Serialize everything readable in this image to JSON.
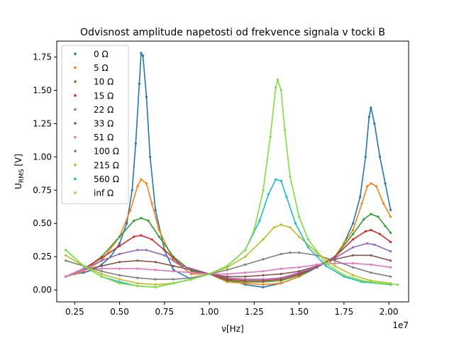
{
  "chart_data": {
    "type": "scatter",
    "title": "Odvisnost amplitude napetosti od frekvence signala v tocki B",
    "xlabel": "ν[Hz]",
    "ylabel_main": "U",
    "ylabel_sub": "RMS",
    "ylabel_unit": " [V]",
    "x_offset_label": "1e7",
    "xlim": [
      0.15,
      2.11
    ],
    "ylim": [
      -0.09,
      1.87
    ],
    "xticks": [
      {
        "v": 0.25,
        "label": "0.25"
      },
      {
        "v": 0.5,
        "label": "0.50"
      },
      {
        "v": 0.75,
        "label": "0.75"
      },
      {
        "v": 1.0,
        "label": "1.00"
      },
      {
        "v": 1.25,
        "label": "1.25"
      },
      {
        "v": 1.5,
        "label": "1.50"
      },
      {
        "v": 1.75,
        "label": "1.75"
      },
      {
        "v": 2.0,
        "label": "2.00"
      }
    ],
    "yticks": [
      {
        "v": 0.0,
        "label": "0.00"
      },
      {
        "v": 0.25,
        "label": "0.25"
      },
      {
        "v": 0.5,
        "label": "0.50"
      },
      {
        "v": 0.75,
        "label": "0.75"
      },
      {
        "v": 1.0,
        "label": "1.00"
      },
      {
        "v": 1.25,
        "label": "1.25"
      },
      {
        "v": 1.5,
        "label": "1.50"
      },
      {
        "v": 1.75,
        "label": "1.75"
      }
    ],
    "legend_position": "top-left",
    "series": [
      {
        "name": "0 Ω",
        "color": "#1f77b4",
        "points": [
          [
            0.2,
            0.1
          ],
          [
            0.25,
            0.12
          ],
          [
            0.3,
            0.13
          ],
          [
            0.35,
            0.15
          ],
          [
            0.4,
            0.19
          ],
          [
            0.45,
            0.25
          ],
          [
            0.5,
            0.35
          ],
          [
            0.54,
            0.5
          ],
          [
            0.57,
            0.75
          ],
          [
            0.59,
            1.1
          ],
          [
            0.61,
            1.55
          ],
          [
            0.62,
            1.78
          ],
          [
            0.63,
            1.76
          ],
          [
            0.65,
            1.45
          ],
          [
            0.67,
            1.0
          ],
          [
            0.7,
            0.6
          ],
          [
            0.75,
            0.3
          ],
          [
            0.8,
            0.15
          ],
          [
            0.9,
            0.08
          ],
          [
            1.0,
            0.12
          ],
          [
            1.1,
            0.08
          ],
          [
            1.2,
            0.04
          ],
          [
            1.3,
            0.02
          ],
          [
            1.4,
            0.05
          ],
          [
            1.5,
            0.1
          ],
          [
            1.6,
            0.17
          ],
          [
            1.7,
            0.25
          ],
          [
            1.75,
            0.35
          ],
          [
            1.8,
            0.5
          ],
          [
            1.84,
            0.7
          ],
          [
            1.87,
            1.0
          ],
          [
            1.89,
            1.3
          ],
          [
            1.9,
            1.37
          ],
          [
            1.92,
            1.25
          ],
          [
            1.95,
            1.0
          ],
          [
            1.98,
            0.8
          ],
          [
            2.01,
            0.6
          ]
        ]
      },
      {
        "name": "5 Ω",
        "color": "#ff7f0e",
        "points": [
          [
            0.2,
            0.1
          ],
          [
            0.3,
            0.14
          ],
          [
            0.4,
            0.22
          ],
          [
            0.5,
            0.4
          ],
          [
            0.56,
            0.6
          ],
          [
            0.6,
            0.78
          ],
          [
            0.62,
            0.83
          ],
          [
            0.65,
            0.8
          ],
          [
            0.68,
            0.65
          ],
          [
            0.72,
            0.45
          ],
          [
            0.8,
            0.22
          ],
          [
            0.9,
            0.12
          ],
          [
            1.0,
            0.12
          ],
          [
            1.1,
            0.06
          ],
          [
            1.2,
            0.05
          ],
          [
            1.3,
            0.04
          ],
          [
            1.4,
            0.05
          ],
          [
            1.5,
            0.1
          ],
          [
            1.6,
            0.18
          ],
          [
            1.7,
            0.25
          ],
          [
            1.8,
            0.45
          ],
          [
            1.85,
            0.65
          ],
          [
            1.88,
            0.78
          ],
          [
            1.9,
            0.8
          ],
          [
            1.93,
            0.78
          ],
          [
            1.97,
            0.65
          ],
          [
            2.01,
            0.55
          ]
        ]
      },
      {
        "name": "10 Ω",
        "color": "#2ca02c",
        "points": [
          [
            0.2,
            0.1
          ],
          [
            0.3,
            0.15
          ],
          [
            0.4,
            0.25
          ],
          [
            0.5,
            0.4
          ],
          [
            0.58,
            0.52
          ],
          [
            0.62,
            0.54
          ],
          [
            0.66,
            0.52
          ],
          [
            0.72,
            0.4
          ],
          [
            0.8,
            0.25
          ],
          [
            0.9,
            0.14
          ],
          [
            1.0,
            0.12
          ],
          [
            1.1,
            0.07
          ],
          [
            1.2,
            0.06
          ],
          [
            1.3,
            0.06
          ],
          [
            1.4,
            0.07
          ],
          [
            1.5,
            0.11
          ],
          [
            1.6,
            0.17
          ],
          [
            1.7,
            0.25
          ],
          [
            1.8,
            0.42
          ],
          [
            1.86,
            0.53
          ],
          [
            1.9,
            0.57
          ],
          [
            1.94,
            0.55
          ],
          [
            1.98,
            0.48
          ],
          [
            2.01,
            0.43
          ]
        ]
      },
      {
        "name": "15 Ω",
        "color": "#d62728",
        "points": [
          [
            0.2,
            0.1
          ],
          [
            0.3,
            0.16
          ],
          [
            0.4,
            0.24
          ],
          [
            0.5,
            0.33
          ],
          [
            0.58,
            0.4
          ],
          [
            0.62,
            0.41
          ],
          [
            0.68,
            0.38
          ],
          [
            0.75,
            0.3
          ],
          [
            0.85,
            0.18
          ],
          [
            1.0,
            0.12
          ],
          [
            1.1,
            0.08
          ],
          [
            1.2,
            0.07
          ],
          [
            1.3,
            0.07
          ],
          [
            1.4,
            0.08
          ],
          [
            1.5,
            0.12
          ],
          [
            1.6,
            0.17
          ],
          [
            1.7,
            0.25
          ],
          [
            1.8,
            0.38
          ],
          [
            1.87,
            0.44
          ],
          [
            1.9,
            0.45
          ],
          [
            1.95,
            0.42
          ],
          [
            2.01,
            0.36
          ]
        ]
      },
      {
        "name": "22 Ω",
        "color": "#9467bd",
        "points": [
          [
            0.2,
            0.1
          ],
          [
            0.3,
            0.16
          ],
          [
            0.4,
            0.22
          ],
          [
            0.5,
            0.27
          ],
          [
            0.6,
            0.3
          ],
          [
            0.65,
            0.3
          ],
          [
            0.75,
            0.26
          ],
          [
            0.85,
            0.18
          ],
          [
            1.0,
            0.12
          ],
          [
            1.1,
            0.09
          ],
          [
            1.2,
            0.08
          ],
          [
            1.3,
            0.08
          ],
          [
            1.4,
            0.09
          ],
          [
            1.5,
            0.13
          ],
          [
            1.6,
            0.17
          ],
          [
            1.7,
            0.24
          ],
          [
            1.8,
            0.32
          ],
          [
            1.88,
            0.35
          ],
          [
            1.92,
            0.34
          ],
          [
            2.01,
            0.29
          ]
        ]
      },
      {
        "name": "33 Ω",
        "color": "#8c564b",
        "points": [
          [
            0.2,
            0.1
          ],
          [
            0.3,
            0.15
          ],
          [
            0.4,
            0.18
          ],
          [
            0.5,
            0.21
          ],
          [
            0.6,
            0.22
          ],
          [
            0.7,
            0.21
          ],
          [
            0.8,
            0.18
          ],
          [
            0.9,
            0.15
          ],
          [
            1.0,
            0.12
          ],
          [
            1.1,
            0.1
          ],
          [
            1.2,
            0.1
          ],
          [
            1.3,
            0.11
          ],
          [
            1.4,
            0.12
          ],
          [
            1.5,
            0.14
          ],
          [
            1.6,
            0.18
          ],
          [
            1.7,
            0.23
          ],
          [
            1.8,
            0.26
          ],
          [
            1.9,
            0.26
          ],
          [
            2.01,
            0.22
          ]
        ]
      },
      {
        "name": "51 Ω",
        "color": "#e377c2",
        "points": [
          [
            0.2,
            0.1
          ],
          [
            0.3,
            0.15
          ],
          [
            0.4,
            0.16
          ],
          [
            0.5,
            0.16
          ],
          [
            0.6,
            0.16
          ],
          [
            0.7,
            0.15
          ],
          [
            0.8,
            0.14
          ],
          [
            0.9,
            0.13
          ],
          [
            1.0,
            0.12
          ],
          [
            1.1,
            0.12
          ],
          [
            1.2,
            0.13
          ],
          [
            1.3,
            0.14
          ],
          [
            1.4,
            0.16
          ],
          [
            1.5,
            0.17
          ],
          [
            1.6,
            0.19
          ],
          [
            1.7,
            0.2
          ],
          [
            1.8,
            0.2
          ],
          [
            1.9,
            0.19
          ],
          [
            2.01,
            0.17
          ]
        ]
      },
      {
        "name": "100 Ω",
        "color": "#7f7f7f",
        "points": [
          [
            0.2,
            0.22
          ],
          [
            0.3,
            0.18
          ],
          [
            0.4,
            0.14
          ],
          [
            0.5,
            0.11
          ],
          [
            0.6,
            0.09
          ],
          [
            0.7,
            0.08
          ],
          [
            0.8,
            0.08
          ],
          [
            0.9,
            0.09
          ],
          [
            1.0,
            0.12
          ],
          [
            1.1,
            0.15
          ],
          [
            1.2,
            0.19
          ],
          [
            1.3,
            0.23
          ],
          [
            1.4,
            0.27
          ],
          [
            1.45,
            0.28
          ],
          [
            1.5,
            0.28
          ],
          [
            1.6,
            0.26
          ],
          [
            1.7,
            0.22
          ],
          [
            1.8,
            0.17
          ],
          [
            1.9,
            0.13
          ],
          [
            2.01,
            0.1
          ]
        ]
      },
      {
        "name": "215 Ω",
        "color": "#bcbd22",
        "points": [
          [
            0.2,
            0.26
          ],
          [
            0.3,
            0.18
          ],
          [
            0.4,
            0.12
          ],
          [
            0.5,
            0.08
          ],
          [
            0.6,
            0.05
          ],
          [
            0.7,
            0.04
          ],
          [
            0.8,
            0.05
          ],
          [
            0.9,
            0.08
          ],
          [
            1.0,
            0.12
          ],
          [
            1.1,
            0.17
          ],
          [
            1.2,
            0.25
          ],
          [
            1.3,
            0.38
          ],
          [
            1.36,
            0.47
          ],
          [
            1.4,
            0.49
          ],
          [
            1.45,
            0.47
          ],
          [
            1.5,
            0.4
          ],
          [
            1.6,
            0.28
          ],
          [
            1.7,
            0.18
          ],
          [
            1.8,
            0.11
          ],
          [
            1.9,
            0.07
          ],
          [
            2.01,
            0.05
          ]
        ]
      },
      {
        "name": "560 Ω",
        "color": "#17becf",
        "points": [
          [
            0.2,
            0.3
          ],
          [
            0.3,
            0.18
          ],
          [
            0.4,
            0.1
          ],
          [
            0.5,
            0.06
          ],
          [
            0.6,
            0.03
          ],
          [
            0.7,
            0.02
          ],
          [
            0.8,
            0.05
          ],
          [
            0.9,
            0.08
          ],
          [
            1.0,
            0.12
          ],
          [
            1.1,
            0.18
          ],
          [
            1.2,
            0.3
          ],
          [
            1.28,
            0.52
          ],
          [
            1.33,
            0.72
          ],
          [
            1.37,
            0.83
          ],
          [
            1.4,
            0.82
          ],
          [
            1.43,
            0.7
          ],
          [
            1.48,
            0.5
          ],
          [
            1.55,
            0.32
          ],
          [
            1.65,
            0.18
          ],
          [
            1.75,
            0.1
          ],
          [
            1.85,
            0.06
          ],
          [
            2.01,
            0.04
          ]
        ]
      },
      {
        "name": "inf Ω",
        "color": "#7fe03a",
        "points": [
          [
            0.2,
            0.3
          ],
          [
            0.3,
            0.18
          ],
          [
            0.4,
            0.1
          ],
          [
            0.5,
            0.05
          ],
          [
            0.6,
            0.03
          ],
          [
            0.7,
            0.02
          ],
          [
            0.8,
            0.05
          ],
          [
            0.9,
            0.08
          ],
          [
            1.0,
            0.12
          ],
          [
            1.1,
            0.18
          ],
          [
            1.2,
            0.3
          ],
          [
            1.25,
            0.45
          ],
          [
            1.3,
            0.75
          ],
          [
            1.34,
            1.15
          ],
          [
            1.37,
            1.52
          ],
          [
            1.38,
            1.58
          ],
          [
            1.4,
            1.5
          ],
          [
            1.42,
            1.2
          ],
          [
            1.45,
            0.85
          ],
          [
            1.5,
            0.55
          ],
          [
            1.55,
            0.38
          ],
          [
            1.65,
            0.2
          ],
          [
            1.75,
            0.11
          ],
          [
            1.85,
            0.07
          ],
          [
            1.95,
            0.05
          ],
          [
            2.05,
            0.04
          ]
        ]
      }
    ]
  }
}
